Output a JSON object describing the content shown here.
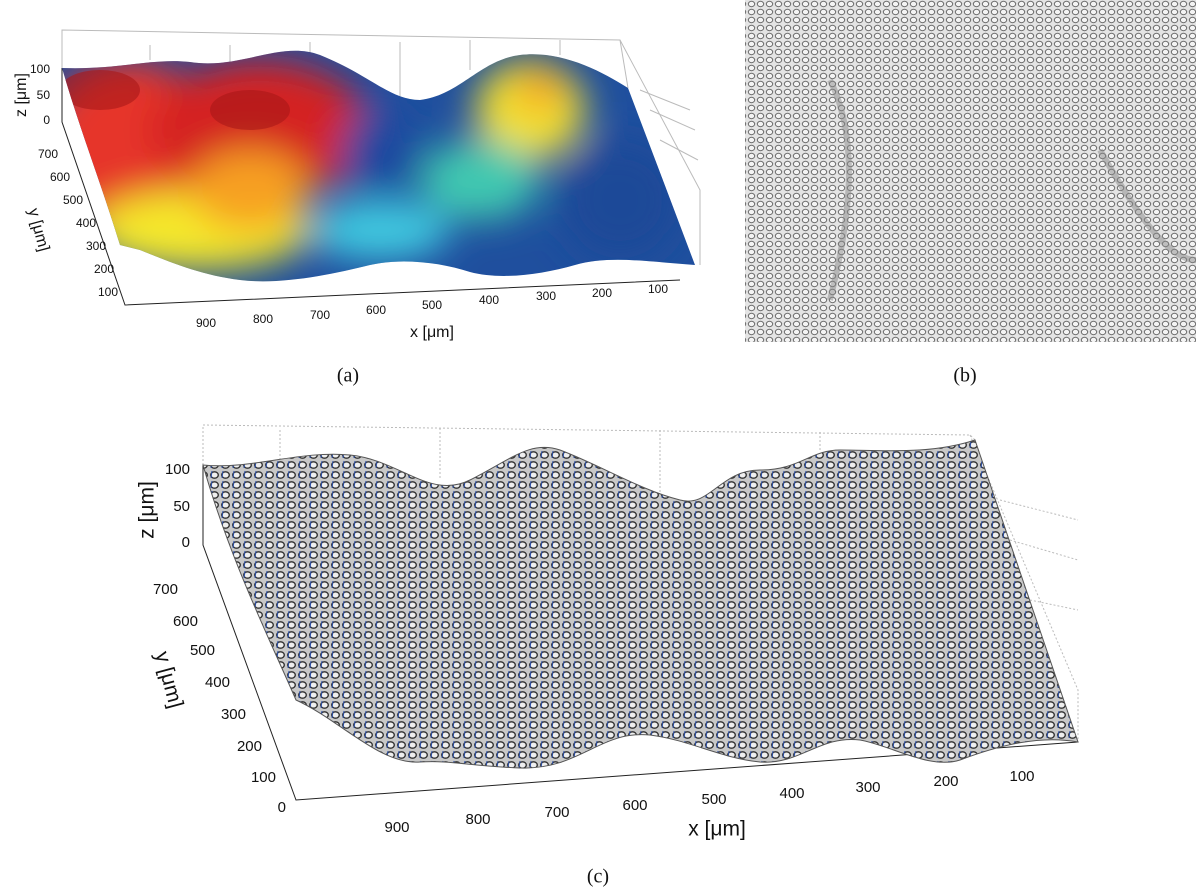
{
  "panels": [
    {
      "caption": "(a)",
      "z_label": "z [μm]",
      "y_label": "y [μm]",
      "x_label": "x [μm]",
      "z_ticks": [
        100,
        50,
        0
      ],
      "y_ticks": [
        700,
        600,
        500,
        400,
        300,
        200,
        100
      ],
      "x_ticks": [
        900,
        800,
        700,
        600,
        500,
        400,
        300,
        200,
        100
      ]
    },
    {
      "caption": "(b)"
    },
    {
      "caption": "(c)",
      "z_label": "z [μm]",
      "y_label": "y [μm]",
      "x_label": "x [μm]",
      "z_ticks": [
        100,
        50,
        0
      ],
      "y_ticks": [
        700,
        600,
        500,
        400,
        300,
        200,
        100,
        0
      ],
      "x_ticks": [
        900,
        800,
        700,
        600,
        500,
        400,
        300,
        200,
        100
      ]
    }
  ]
}
